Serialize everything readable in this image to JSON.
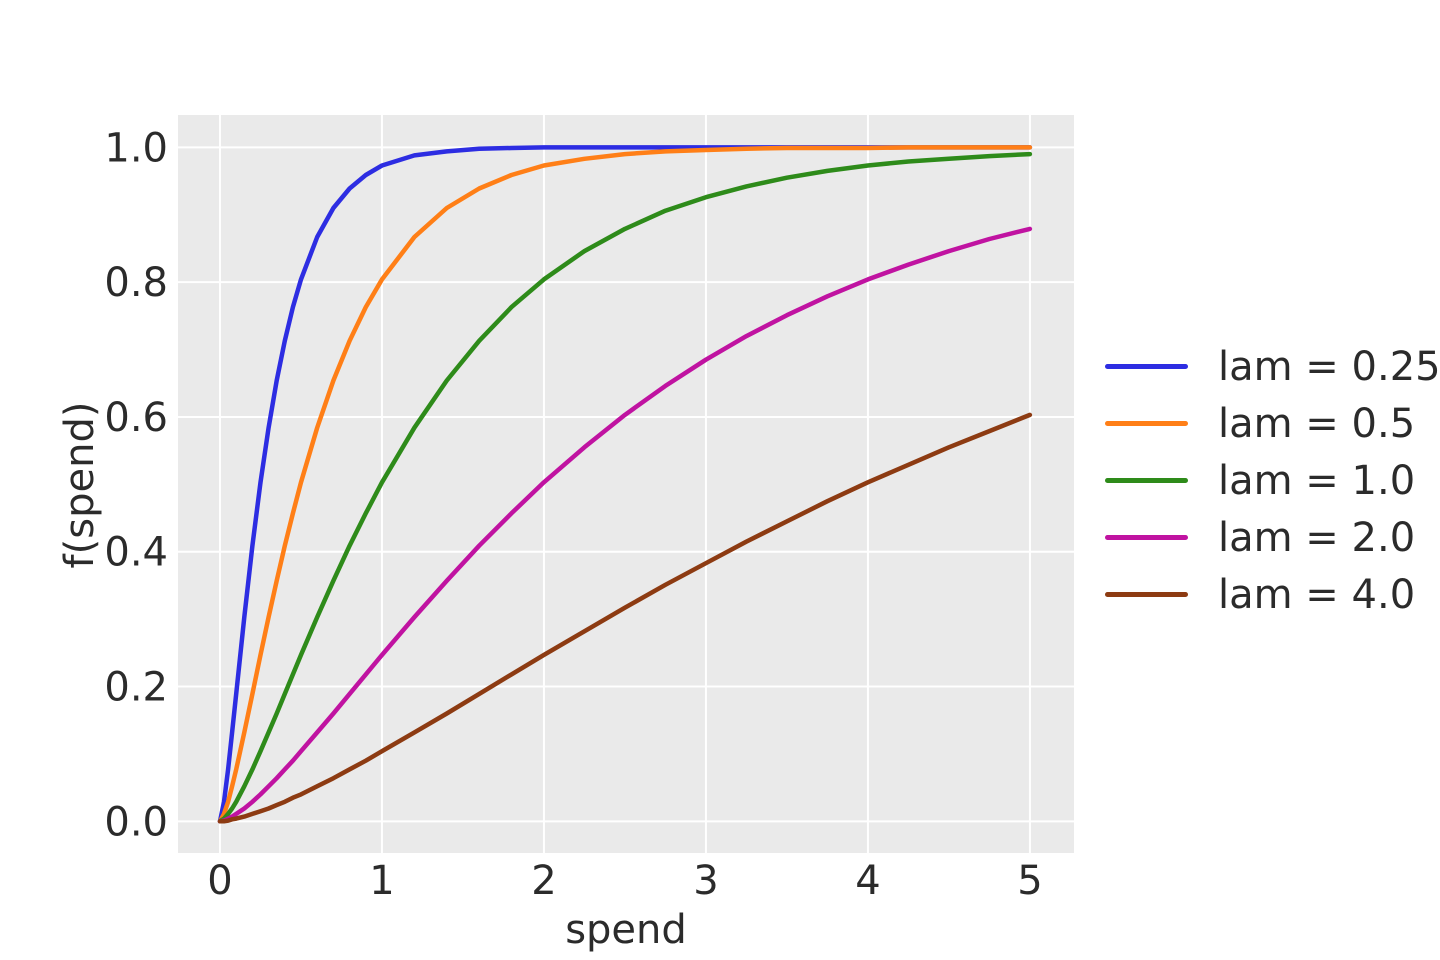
{
  "figure": {
    "background": "#ffffff",
    "plot_bg": "#eaeaea",
    "grid_color": "#ffffff",
    "text_color": "#2b2b2b"
  },
  "chart_data": {
    "type": "line",
    "title": "",
    "xlabel": "spend",
    "ylabel": "f(spend)",
    "grid": true,
    "legend_position": "right-outside",
    "xlim": [
      -0.259,
      5.272
    ],
    "ylim": [
      -0.047,
      1.048
    ],
    "x_ticks": [
      0,
      1,
      2,
      3,
      4,
      5
    ],
    "x_tick_labels": [
      "0",
      "1",
      "2",
      "3",
      "4",
      "5"
    ],
    "y_ticks": [
      0.0,
      0.2,
      0.4,
      0.6,
      0.8,
      1.0
    ],
    "y_tick_labels": [
      "0.0",
      "0.2",
      "0.4",
      "0.6",
      "0.8",
      "1.0"
    ],
    "x": [
      0,
      0.025,
      0.05,
      0.075,
      0.1,
      0.15,
      0.2,
      0.25,
      0.3,
      0.35,
      0.4,
      0.45,
      0.5,
      0.6,
      0.7,
      0.8,
      0.9,
      1,
      1.2,
      1.4,
      1.6,
      1.8,
      2,
      2.25,
      2.5,
      2.75,
      3,
      3.25,
      3.5,
      3.75,
      4,
      4.25,
      4.5,
      4.75,
      5
    ],
    "series": [
      {
        "name": "lam = 0.25",
        "lam": 0.25,
        "color": "#2d2de2",
        "y": [
          0,
          0.029,
          0.077,
          0.132,
          0.189,
          0.303,
          0.409,
          0.503,
          0.584,
          0.654,
          0.713,
          0.763,
          0.804,
          0.867,
          0.91,
          0.939,
          0.959,
          0.973,
          0.988,
          0.994,
          0.998,
          0.999,
          1,
          1,
          1,
          1,
          1,
          1,
          1,
          1,
          1,
          1,
          1,
          1,
          1
        ]
      },
      {
        "name": "lam = 0.5",
        "lam": 0.5,
        "color": "#ff7f17",
        "y": [
          0,
          0.011,
          0.029,
          0.052,
          0.077,
          0.132,
          0.189,
          0.247,
          0.303,
          0.357,
          0.409,
          0.457,
          0.503,
          0.584,
          0.654,
          0.713,
          0.763,
          0.804,
          0.867,
          0.91,
          0.939,
          0.959,
          0.973,
          0.983,
          0.99,
          0.994,
          0.996,
          0.998,
          0.999,
          0.999,
          0.999,
          1,
          1,
          1,
          1
        ]
      },
      {
        "name": "lam = 1.0",
        "lam": 1.0,
        "color": "#2e8b1a",
        "y": [
          0,
          0.004,
          0.011,
          0.019,
          0.029,
          0.052,
          0.077,
          0.104,
          0.132,
          0.16,
          0.189,
          0.218,
          0.247,
          0.303,
          0.357,
          0.409,
          0.457,
          0.503,
          0.584,
          0.654,
          0.713,
          0.763,
          0.804,
          0.846,
          0.879,
          0.906,
          0.926,
          0.942,
          0.955,
          0.965,
          0.973,
          0.979,
          0.983,
          0.987,
          0.99
        ]
      },
      {
        "name": "lam = 2.0",
        "lam": 2.0,
        "color": "#c013a1",
        "y": [
          0,
          0.001,
          0.004,
          0.007,
          0.011,
          0.019,
          0.029,
          0.04,
          0.052,
          0.064,
          0.077,
          0.09,
          0.104,
          0.132,
          0.16,
          0.189,
          0.218,
          0.247,
          0.303,
          0.357,
          0.409,
          0.457,
          0.503,
          0.555,
          0.603,
          0.646,
          0.685,
          0.72,
          0.751,
          0.779,
          0.804,
          0.826,
          0.846,
          0.864,
          0.879
        ]
      },
      {
        "name": "lam = 4.0",
        "lam": 4.0,
        "color": "#8d3b12",
        "y": [
          0,
          0.0,
          0.001,
          0.003,
          0.004,
          0.007,
          0.011,
          0.015,
          0.019,
          0.024,
          0.029,
          0.035,
          0.04,
          0.052,
          0.064,
          0.077,
          0.09,
          0.104,
          0.132,
          0.16,
          0.189,
          0.218,
          0.247,
          0.282,
          0.317,
          0.351,
          0.383,
          0.415,
          0.445,
          0.475,
          0.503,
          0.529,
          0.555,
          0.579,
          0.603
        ]
      }
    ]
  }
}
